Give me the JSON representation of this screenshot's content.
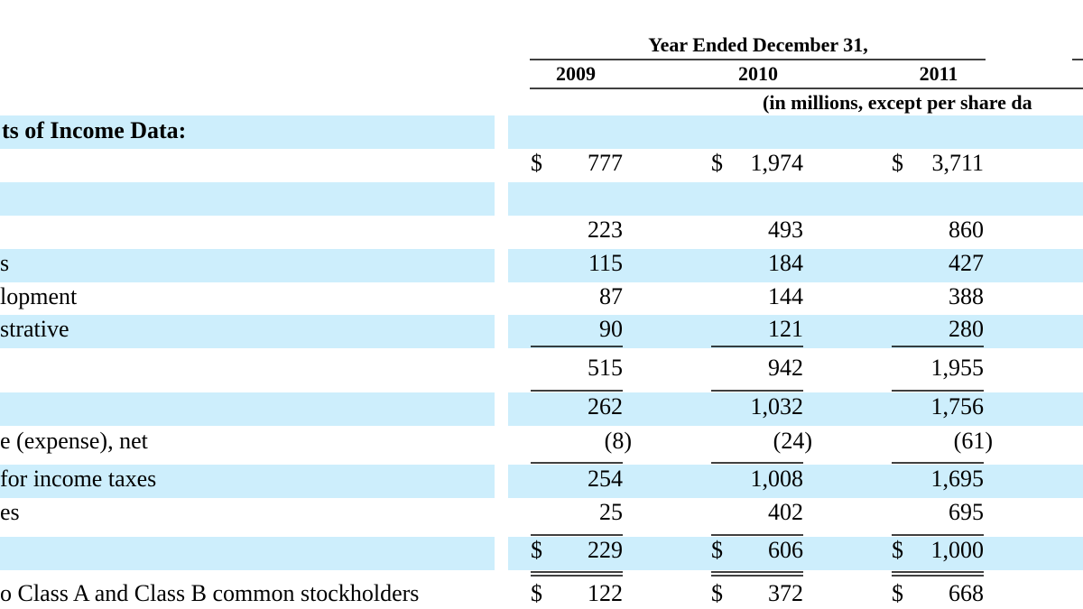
{
  "header": {
    "group": "Year Ended December 31,",
    "years": [
      "2009",
      "2010",
      "2011"
    ],
    "unit": "(in millions, except per share da"
  },
  "table": {
    "rows": [
      {
        "label": "ts of Income Data:",
        "section": true
      },
      {
        "cells": [
          {
            "prefix": "$",
            "value": "777"
          },
          {
            "prefix": "$",
            "value": "1,974"
          },
          {
            "prefix": "$",
            "value": "3,711"
          }
        ]
      },
      {},
      {
        "cells": [
          "223",
          "493",
          "860"
        ]
      },
      {
        "label": "s",
        "cells": [
          "115",
          "184",
          "427"
        ]
      },
      {
        "label": "lopment",
        "cells": [
          "87",
          "144",
          "388"
        ]
      },
      {
        "label": "strative",
        "cells": [
          "90",
          "121",
          "280"
        ]
      },
      {
        "cells": [
          "515",
          "942",
          "1,955"
        ]
      },
      {
        "cells": [
          "262",
          "1,032",
          "1,756"
        ]
      },
      {
        "label": "e (expense), net",
        "cells": [
          "(8)",
          "(24)",
          "(61)"
        ]
      },
      {
        "label": "for income taxes",
        "cells": [
          "254",
          "1,008",
          "1,695"
        ]
      },
      {
        "label": "es",
        "cells": [
          "25",
          "402",
          "695"
        ]
      },
      {
        "cells": [
          {
            "prefix": "$",
            "value": "229"
          },
          {
            "prefix": "$",
            "value": "606"
          },
          {
            "prefix": "$",
            "value": "1,000"
          }
        ]
      },
      {
        "label": "o Class A and Class B common stockholders",
        "cells": [
          {
            "prefix": "$",
            "value": "122"
          },
          {
            "prefix": "$",
            "value": "372"
          },
          {
            "prefix": "$",
            "value": "668"
          }
        ]
      }
    ]
  }
}
